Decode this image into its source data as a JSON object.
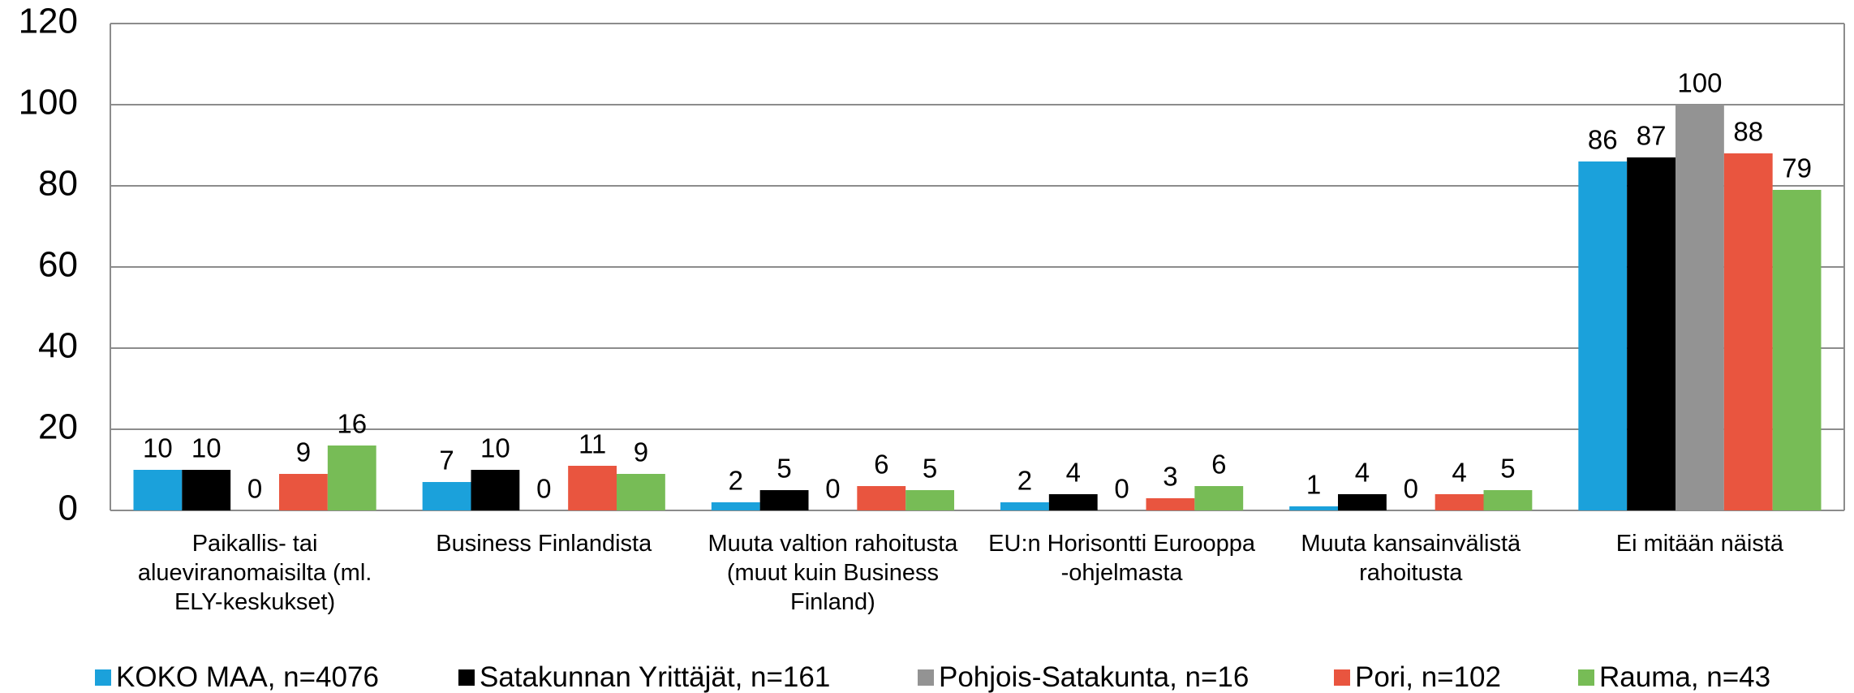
{
  "chart_data": {
    "type": "bar",
    "categories": [
      "Paikallis- tai alueviranomaisilta (ml. ELY-keskukset)",
      "Business Finlandista",
      "Muuta valtion rahoitusta (muut kuin Business Finland)",
      "EU:n Horisontti Eurooppa -ohjelmasta",
      "Muuta kansainvälistä rahoitusta",
      "Ei mitään näistä"
    ],
    "series": [
      {
        "name": "KOKO MAA, n=4076",
        "color": "#1ba1db",
        "values": [
          10,
          7,
          2,
          2,
          1,
          86
        ]
      },
      {
        "name": "Satakunnan Yrittäjät, n=161",
        "color": "#000000",
        "values": [
          10,
          10,
          5,
          4,
          4,
          87
        ]
      },
      {
        "name": "Pohjois-Satakunta, n=16",
        "color": "#939393",
        "values": [
          0,
          0,
          0,
          0,
          0,
          100
        ]
      },
      {
        "name": "Pori, n=102",
        "color": "#e9553f",
        "values": [
          9,
          11,
          6,
          3,
          4,
          88
        ]
      },
      {
        "name": "Rauma, n=43",
        "color": "#77bc56",
        "values": [
          16,
          9,
          5,
          6,
          5,
          79
        ]
      }
    ],
    "ylim": [
      0,
      120
    ],
    "yticks": [
      0,
      20,
      40,
      60,
      80,
      100,
      120
    ],
    "grid": true,
    "legend": "bottom"
  }
}
